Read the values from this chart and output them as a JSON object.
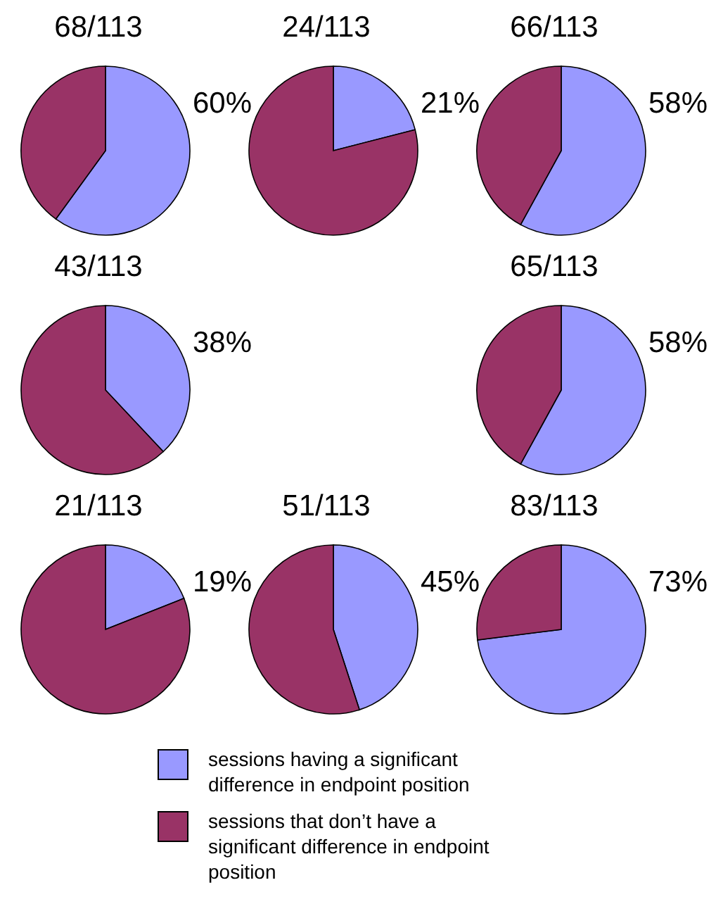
{
  "chart_data": [
    {
      "type": "pie",
      "title": "68/113",
      "categories": [
        null,
        null
      ],
      "values": [
        60,
        40
      ],
      "colors": [
        "#9999ff",
        "#993366"
      ],
      "value_labels": [
        "60%",
        null
      ]
    },
    {
      "type": "pie",
      "title": "24/113",
      "categories": [
        null,
        null
      ],
      "values": [
        21,
        79
      ],
      "colors": [
        "#9999ff",
        "#993366"
      ],
      "value_labels": [
        "21%",
        null
      ]
    },
    {
      "type": "pie",
      "title": "66/113",
      "categories": [
        null,
        null
      ],
      "values": [
        58,
        42
      ],
      "colors": [
        "#9999ff",
        "#993366"
      ],
      "value_labels": [
        "58%",
        null
      ]
    },
    {
      "type": "pie",
      "title": "43/113",
      "categories": [
        null,
        null
      ],
      "values": [
        38,
        62
      ],
      "colors": [
        "#9999ff",
        "#993366"
      ],
      "value_labels": [
        "38%",
        null
      ]
    },
    {
      "type": "pie",
      "title": "65/113",
      "categories": [
        null,
        null
      ],
      "values": [
        58,
        42
      ],
      "colors": [
        "#9999ff",
        "#993366"
      ],
      "value_labels": [
        "58%",
        null
      ]
    },
    {
      "type": "pie",
      "title": "21/113",
      "categories": [
        null,
        null
      ],
      "values": [
        19,
        81
      ],
      "colors": [
        "#9999ff",
        "#993366"
      ],
      "value_labels": [
        "19%",
        null
      ]
    },
    {
      "type": "pie",
      "title": "51/113",
      "categories": [
        null,
        null
      ],
      "values": [
        45,
        55
      ],
      "colors": [
        "#9999ff",
        "#993366"
      ],
      "value_labels": [
        "45%",
        null
      ]
    },
    {
      "type": "pie",
      "title": "83/113",
      "categories": [
        "sessions having a significant difference in endpoint position",
        "sessions that don’t have a significant difference in endpoint position"
      ],
      "values": [
        73,
        27
      ],
      "colors": [
        "#9999ff",
        "#993366"
      ],
      "value_labels": [
        "73%",
        null
      ],
      "legend": "bottom"
    }
  ]
}
